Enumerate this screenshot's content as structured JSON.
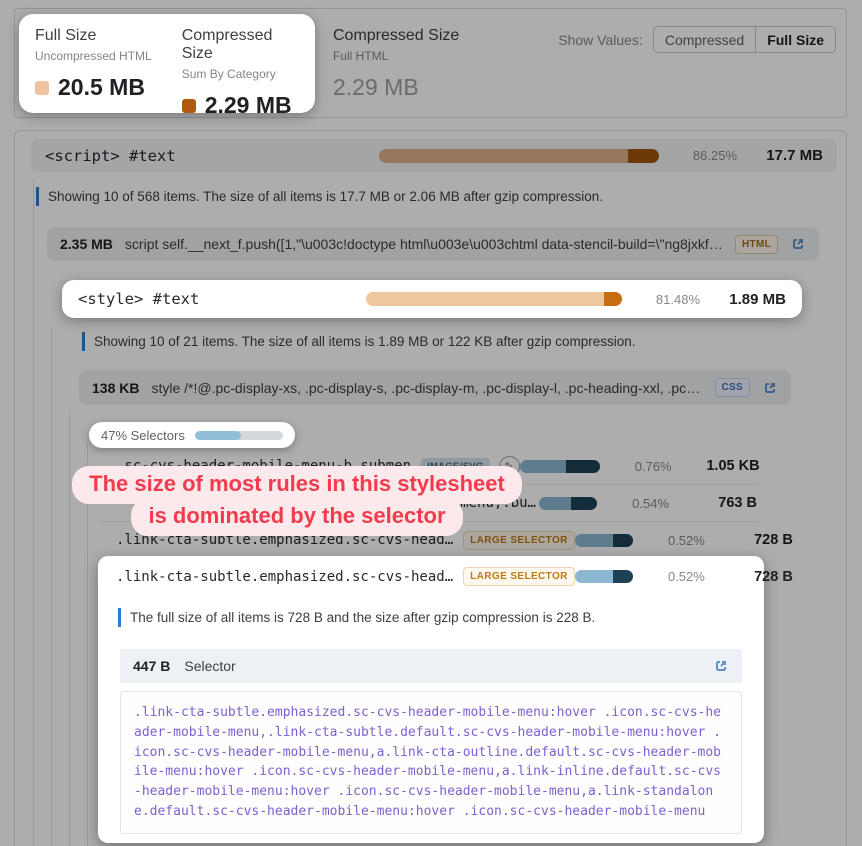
{
  "header": {
    "full_size": {
      "title": "Full Size",
      "subtitle": "Uncompressed HTML",
      "value": "20.5 MB",
      "swatch": "#ecc5a0"
    },
    "compressed_sum": {
      "title": "Compressed Size",
      "subtitle": "Sum By Category",
      "value": "2.29 MB",
      "swatch": "#b05a10"
    },
    "compressed_full": {
      "title": "Compressed Size",
      "subtitle": "Full HTML",
      "value": "2.29 MB"
    },
    "show_values": {
      "label": "Show Values:",
      "options": [
        "Compressed",
        "Full Size"
      ],
      "selected": "Full Size"
    }
  },
  "script_section": {
    "name": "<script> #text",
    "percent": "86.25%",
    "size": "17.7 MB",
    "note": "Showing 10 of 568 items. The size of all items is 17.7 MB or 2.06 MB after gzip compression.",
    "item": {
      "size": "2.35 MB",
      "text": "script self.__next_f.push([1,\"\\u003c!doctype html\\u003e\\u003chtml data-stencil-build=\\\"ng8jxkfn…",
      "badge": "HTML"
    }
  },
  "style_section": {
    "name": "<style> #text",
    "percent": "81.48%",
    "size": "1.89 MB",
    "note": "Showing 10 of 21 items. The size of all items is 1.89 MB or 122 KB after gzip compression.",
    "item": {
      "size": "138 KB",
      "text": "style /*!@.pc-display-xs, .pc-display-s, .pc-display-m, .pc-display-l, .pc-heading-xxl, .pc-hea…",
      "badge": "CSS"
    },
    "selectors_pill": {
      "label": "47% Selectors"
    }
  },
  "rules": {
    "0": {
      "text": ".sc-cvs-header-mobile-menu-b…submen",
      "badge": "IMAGE/SVG",
      "percent": "0.76%",
      "size": "1.05 KB"
    },
    "1": {
      "text": "…menu,.bu…",
      "percent": "0.54%",
      "size": "763 B"
    },
    "2": {
      "text": ".link-cta-subtle.emphasized.sc-cvs-head…",
      "badge": "LARGE SELECTOR",
      "percent": "0.52%",
      "size": "728 B"
    }
  },
  "selected_rule": {
    "text": ".link-cta-subtle.emphasized.sc-cvs-head…",
    "badge": "LARGE SELECTOR",
    "percent": "0.52%",
    "size": "728 B",
    "note": "The full size of all items is 728 B and the size after gzip compression is 228 B.",
    "detail": {
      "size": "447 B",
      "label": "Selector",
      "code": ".link-cta-subtle.emphasized.sc-cvs-header-mobile-menu:hover .icon.sc-cvs-header-mobile-menu,.link-cta-subtle.default.sc-cvs-header-mobile-menu:hover .icon.sc-cvs-header-mobile-menu,a.link-cta-outline.default.sc-cvs-header-mobile-menu:hover .icon.sc-cvs-header-mobile-menu,a.link-inline.default.sc-cvs-header-mobile-menu:hover .icon.sc-cvs-header-mobile-menu,a.link-standalone.default.sc-cvs-header-mobile-menu:hover .icon.sc-cvs-header-mobile-menu"
    }
  },
  "tooltip": {
    "line1": "The size of most rules in this stylesheet",
    "line2": "is dominated by the selector"
  },
  "bars": {
    "script": {
      "light": 89,
      "dark": 11
    },
    "style": {
      "light": 93,
      "dark": 7
    },
    "pill_fill": 52,
    "rule0": {
      "light": 58,
      "dark": 42
    },
    "rule1": {
      "light": 55,
      "dark": 45
    },
    "rule2": {
      "light": 65,
      "dark": 35
    },
    "rule3": {
      "light": 65,
      "dark": 35
    }
  },
  "colors": {
    "tan_light": "#deb087",
    "tan_dark": "#a2550c",
    "style_light": "#eec79f",
    "style_dark": "#c76d12",
    "blue_light": "#8cb7d3",
    "blue_dark": "#1d4256",
    "accent_note": "#2a7fd0",
    "tooltip_red": "#f43b4e",
    "code_purple": "#7d61cf"
  }
}
